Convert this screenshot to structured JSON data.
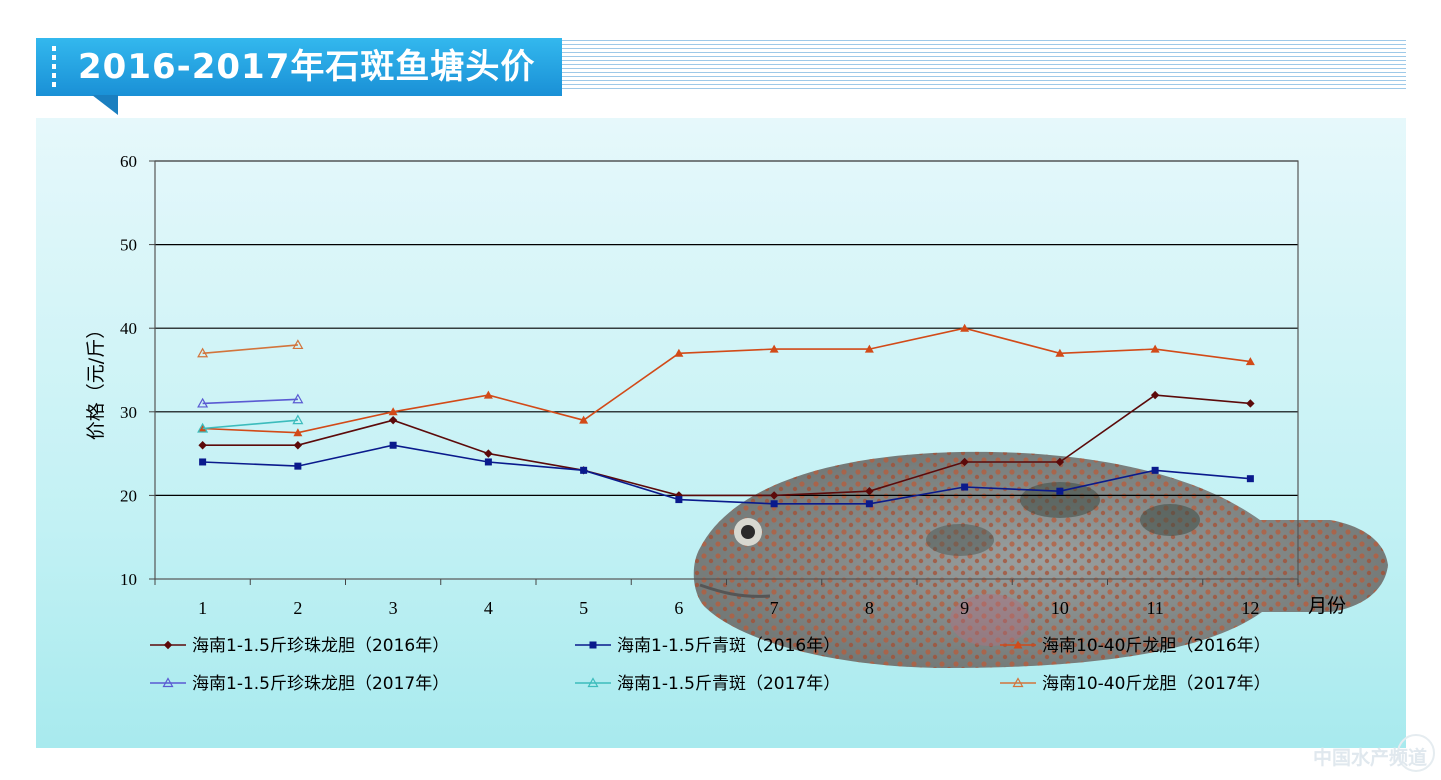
{
  "header": {
    "title": "2016-2017年石斑鱼塘头价"
  },
  "watermark": {
    "text": "中国水产频道"
  },
  "chart_data": {
    "type": "line",
    "title": "2016-2017年石斑鱼塘头价",
    "ylabel": "价格（元/斤）",
    "xlabel": "月份",
    "ylim": [
      10,
      60
    ],
    "yticks": [
      "10",
      "20",
      "30",
      "40",
      "50",
      "60"
    ],
    "categories": [
      "1",
      "2",
      "3",
      "4",
      "5",
      "6",
      "7",
      "8",
      "9",
      "10",
      "11",
      "12"
    ],
    "grid": true,
    "legend_position": "bottom",
    "series": [
      {
        "name": "海南1-1.5斤珍珠龙胆（2016年）",
        "color": "#5c0a0a",
        "marker": "diamond",
        "values": [
          26,
          26,
          29,
          25,
          23,
          20,
          20,
          20.5,
          24,
          24,
          32,
          31
        ]
      },
      {
        "name": "海南1-1.5斤青斑（2016年）",
        "color": "#0a1a8c",
        "marker": "square",
        "values": [
          24,
          23.5,
          26,
          24,
          23,
          19.5,
          19,
          19,
          21,
          20.5,
          23,
          22
        ]
      },
      {
        "name": "海南10-40斤龙胆（2016年）",
        "color": "#d24a18",
        "marker": "triangle",
        "values": [
          28,
          27.5,
          30,
          32,
          29,
          37,
          37.5,
          37.5,
          40,
          37,
          37.5,
          36
        ]
      },
      {
        "name": "海南1-1.5斤珍珠龙胆（2017年）",
        "color": "#5a5ad2",
        "marker": "triangle-open",
        "values": [
          31,
          31.5,
          null,
          null,
          null,
          null,
          null,
          null,
          null,
          null,
          null,
          null
        ]
      },
      {
        "name": "海南1-1.5斤青斑（2017年）",
        "color": "#3cbcbc",
        "marker": "triangle-open",
        "values": [
          28,
          29,
          null,
          null,
          null,
          null,
          null,
          null,
          null,
          null,
          null,
          null
        ]
      },
      {
        "name": "海南10-40斤龙胆（2017年）",
        "color": "#d2743c",
        "marker": "triangle-open",
        "values": [
          37,
          38,
          null,
          null,
          null,
          null,
          null,
          null,
          null,
          null,
          null,
          null
        ]
      }
    ]
  }
}
